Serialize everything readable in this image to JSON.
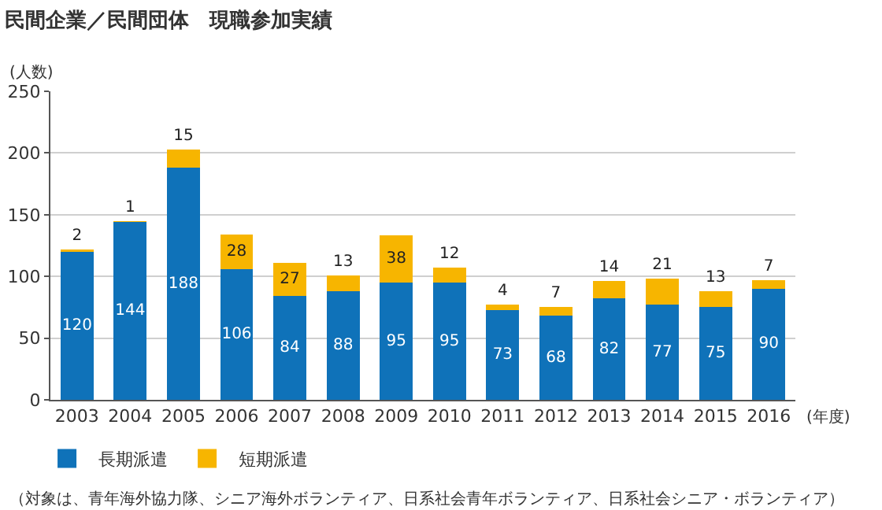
{
  "chart_data": {
    "type": "bar",
    "title": "民間企業／民間団体　現職参加実績",
    "ylabel": "(人数)",
    "xlabel": "(年度)",
    "categories": [
      "2003",
      "2004",
      "2005",
      "2006",
      "2007",
      "2008",
      "2009",
      "2010",
      "2011",
      "2012",
      "2013",
      "2014",
      "2015",
      "2016"
    ],
    "series": [
      {
        "name": "長期派遣",
        "color": "#0f72b9",
        "values": [
          120,
          144,
          188,
          106,
          84,
          88,
          95,
          95,
          73,
          68,
          82,
          77,
          75,
          90
        ]
      },
      {
        "name": "短期派遣",
        "color": "#f7b500",
        "values": [
          2,
          1,
          15,
          28,
          27,
          13,
          38,
          12,
          4,
          7,
          14,
          21,
          13,
          7
        ]
      }
    ],
    "stacked": true,
    "data_labels": true,
    "ylim": [
      0,
      250
    ],
    "yticks": [
      0,
      50,
      100,
      150,
      200,
      250
    ],
    "grid": "y",
    "legend": "bottom left",
    "annotations": [
      "（対象は、青年海外協力隊、シニア海外ボランティア、日系社会青年ボランティア、日系社会シニア・ボランティア）"
    ]
  }
}
